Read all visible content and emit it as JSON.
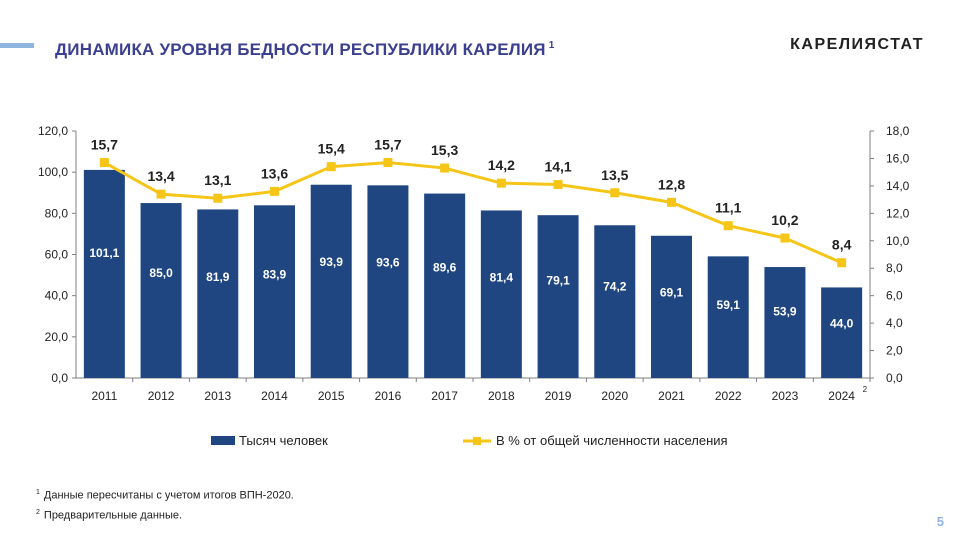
{
  "header": {
    "title": "ДИНАМИКА УРОВНЯ БЕДНОСТИ РЕСПУБЛИКИ КАРЕЛИЯ",
    "title_note": "1",
    "brand": "КАРЕЛИЯСТАТ"
  },
  "chart_data": {
    "type": "bar+line",
    "title": "ДИНАМИКА УРОВНЯ БЕДНОСТИ РЕСПУБЛИКИ КАРЕЛИЯ",
    "categories": [
      "2011",
      "2012",
      "2013",
      "2014",
      "2015",
      "2016",
      "2017",
      "2018",
      "2019",
      "2020",
      "2021",
      "2022",
      "2023",
      "2024"
    ],
    "last_category_note": "2",
    "series": [
      {
        "name": "Тысяч человек",
        "type": "bar",
        "axis": "left",
        "color": "#1f4681",
        "values": [
          101.1,
          85.0,
          81.9,
          83.9,
          93.9,
          93.6,
          89.6,
          81.4,
          79.1,
          74.2,
          69.1,
          59.1,
          53.9,
          44.0
        ],
        "labels": [
          "101,1",
          "85,0",
          "81,9",
          "83,9",
          "93,9",
          "93,6",
          "89,6",
          "81,4",
          "79,1",
          "74,2",
          "69,1",
          "59,1",
          "53,9",
          "44,0"
        ]
      },
      {
        "name": "В % от общей численности населения",
        "type": "line",
        "axis": "right",
        "color": "#f5c518",
        "values": [
          15.7,
          13.4,
          13.1,
          13.6,
          15.4,
          15.7,
          15.3,
          14.2,
          14.1,
          13.5,
          12.8,
          11.1,
          10.2,
          8.4
        ],
        "labels": [
          "15,7",
          "13,4",
          "13,1",
          "13,6",
          "15,4",
          "15,7",
          "15,3",
          "14,2",
          "14,1",
          "13,5",
          "12,8",
          "11,1",
          "10,2",
          "8,4"
        ]
      }
    ],
    "y_left": {
      "min": 0,
      "max": 120,
      "ticks": [
        "0,0",
        "20,0",
        "40,0",
        "60,0",
        "80,0",
        "100,0",
        "120,0"
      ]
    },
    "y_right": {
      "min": 0,
      "max": 18,
      "ticks": [
        "0,0",
        "2,0",
        "4,0",
        "6,0",
        "8,0",
        "10,0",
        "12,0",
        "14,0",
        "16,0",
        "18,0"
      ]
    },
    "legend_position": "bottom",
    "grid": false
  },
  "footnotes": [
    {
      "mark": "1",
      "text": "Данные пересчитаны с учетом итогов ВПН-2020."
    },
    {
      "mark": "2",
      "text": "Предварительные данные."
    }
  ],
  "page_number": "5"
}
